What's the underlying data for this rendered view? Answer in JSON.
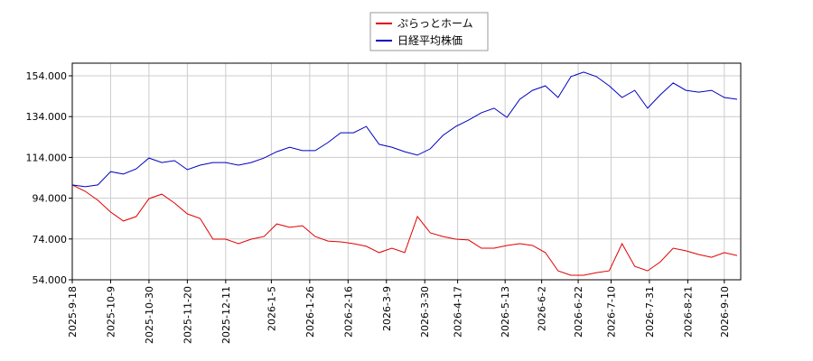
{
  "chart_data": {
    "type": "line",
    "x": [
      "2025-9-18",
      "2025-9-25",
      "2025-10-2",
      "2025-10-9",
      "2025-10-16",
      "2025-10-23",
      "2025-10-30",
      "2025-11-6",
      "2025-11-13",
      "2025-11-20",
      "2025-11-27",
      "2025-12-4",
      "2025-12-11",
      "2025-12-18",
      "2025-12-25",
      "2026-1-1",
      "2026-1-8",
      "2026-1-15",
      "2026-1-22",
      "2026-1-29",
      "2026-2-5",
      "2026-2-12",
      "2026-2-19",
      "2026-2-26",
      "2026-3-5",
      "2026-3-12",
      "2026-3-19",
      "2026-3-26",
      "2026-4-2",
      "2026-4-9",
      "2026-4-16",
      "2026-4-23",
      "2026-4-30",
      "2026-5-7",
      "2026-5-14",
      "2026-5-21",
      "2026-5-28",
      "2026-6-4",
      "2026-6-11",
      "2026-6-18",
      "2026-6-25",
      "2026-7-2",
      "2026-7-9",
      "2026-7-16",
      "2026-7-23",
      "2026-7-30",
      "2026-8-6",
      "2026-8-13",
      "2026-8-20",
      "2026-8-27",
      "2026-9-3",
      "2026-9-10",
      "2026-9-17"
    ],
    "series": [
      {
        "name": "ぷらっとホーム",
        "color": "#e00000",
        "values": [
          100500,
          97400,
          93000,
          87200,
          82800,
          85000,
          93800,
          96000,
          91600,
          86300,
          84100,
          73900,
          73900,
          71700,
          73900,
          75200,
          81400,
          79700,
          80500,
          75200,
          73000,
          72600,
          71700,
          70400,
          67300,
          69500,
          67300,
          85000,
          77000,
          75200,
          73900,
          73500,
          69500,
          69500,
          70800,
          71700,
          70800,
          67300,
          58400,
          56200,
          56200,
          57500,
          58400,
          71700,
          60600,
          58400,
          62800,
          69500,
          68200,
          66400,
          65000,
          67300,
          65900
        ]
      },
      {
        "name": "日経平均株価",
        "color": "#0000c0",
        "values": [
          100500,
          99600,
          100500,
          107000,
          105800,
          108400,
          113700,
          111500,
          112400,
          108000,
          110200,
          111500,
          111500,
          110200,
          111500,
          113700,
          116800,
          119000,
          117300,
          117300,
          121300,
          126100,
          126100,
          129200,
          120400,
          119000,
          116800,
          115100,
          118200,
          124800,
          129200,
          132300,
          135900,
          138100,
          133600,
          142500,
          146900,
          149100,
          143400,
          153600,
          155800,
          153600,
          149100,
          143400,
          146900,
          138100,
          144700,
          150500,
          146900,
          146000,
          146900,
          143400,
          142500
        ]
      }
    ],
    "xlim": [
      "2025-9-18",
      "2026-9-19"
    ],
    "xticks": [
      "2025-9-18",
      "2025-10-9",
      "2025-10-30",
      "2025-11-20",
      "2025-12-11",
      "2026-1-5",
      "2026-1-26",
      "2026-2-16",
      "2026-3-9",
      "2026-3-30",
      "2026-4-17",
      "2026-5-13",
      "2026-6-2",
      "2026-6-22",
      "2026-7-10",
      "2026-7-31",
      "2026-8-21",
      "2026-9-10"
    ],
    "ylim": [
      54000,
      160200
    ],
    "yticks": [
      {
        "value": 54000,
        "label": "54.000"
      },
      {
        "value": 74000,
        "label": "74.000"
      },
      {
        "value": 94000,
        "label": "94.000"
      },
      {
        "value": 114000,
        "label": "114.000"
      },
      {
        "value": 134000,
        "label": "134.000"
      },
      {
        "value": 154000,
        "label": "154.000"
      }
    ],
    "grid": true
  }
}
